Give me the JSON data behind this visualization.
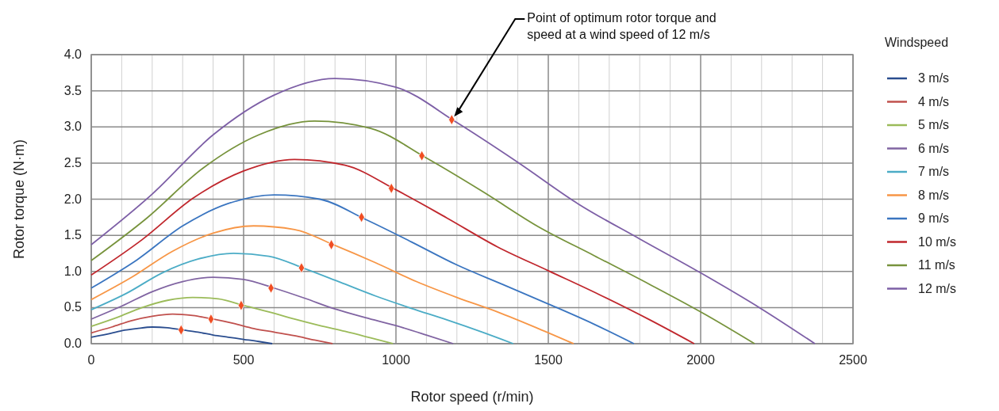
{
  "chart_data": {
    "type": "line",
    "xlabel": "Rotor speed (r/min)",
    "ylabel": "Rotor torque (N·m)",
    "legend_title": "Windspeed",
    "legend": "right",
    "grid": true,
    "marker": "none",
    "line_style": "solid",
    "xlim": [
      0,
      2500
    ],
    "ylim": [
      0,
      4
    ],
    "xticks": [
      0,
      {
        "value": 100,
        "label": null
      },
      {
        "value": 200,
        "label": null
      },
      {
        "value": 300,
        "label": null
      },
      {
        "value": 400,
        "label": null
      },
      500,
      {
        "value": 600,
        "label": null
      },
      {
        "value": 700,
        "label": null
      },
      {
        "value": 800,
        "label": null
      },
      {
        "value": 900,
        "label": null
      },
      1000,
      {
        "value": 1100,
        "label": null
      },
      {
        "value": 1200,
        "label": null
      },
      {
        "value": 1300,
        "label": null
      },
      {
        "value": 1400,
        "label": null
      },
      1500,
      {
        "value": 1600,
        "label": null
      },
      {
        "value": 1700,
        "label": null
      },
      {
        "value": 1800,
        "label": null
      },
      {
        "value": 1900,
        "label": null
      },
      2000,
      {
        "value": 2100,
        "label": null
      },
      {
        "value": 2200,
        "label": null
      },
      {
        "value": 2300,
        "label": null
      },
      {
        "value": 2400,
        "label": null
      },
      2500
    ],
    "yticks": [
      {
        "value": 0,
        "label": "0.0"
      },
      0.5,
      {
        "value": 1,
        "label": "1.0"
      },
      1.5,
      {
        "value": 2,
        "label": "2.0"
      },
      2.5,
      {
        "value": 3,
        "label": "3.0"
      },
      3.5,
      {
        "value": 4,
        "label": "4.0"
      }
    ],
    "annotations": [
      "Point of optimum rotor torque and\nspeed at a wind speed of 12 m/s"
    ],
    "series": [
      {
        "name": "3 m/s",
        "color": "#2a4d8f",
        "x": [
          0,
          50,
          100,
          150,
          200,
          250,
          300,
          350,
          400,
          450,
          500,
          550,
          594
        ],
        "values": [
          0.09,
          0.13,
          0.18,
          0.21,
          0.23,
          0.22,
          0.19,
          0.16,
          0.12,
          0.09,
          0.06,
          0.03,
          0
        ]
      },
      {
        "name": "4 m/s",
        "color": "#c0504d",
        "x": [
          0,
          67,
          133,
          200,
          267,
          333,
          400,
          467,
          533,
          600,
          667,
          733,
          792
        ],
        "values": [
          0.15,
          0.23,
          0.32,
          0.38,
          0.41,
          0.39,
          0.34,
          0.28,
          0.21,
          0.16,
          0.11,
          0.05,
          0
        ]
      },
      {
        "name": "5 m/s",
        "color": "#9bbb59",
        "x": [
          0,
          83,
          167,
          250,
          333,
          417,
          500,
          583,
          667,
          750,
          833,
          917,
          990
        ],
        "values": [
          0.24,
          0.36,
          0.5,
          0.6,
          0.64,
          0.62,
          0.53,
          0.44,
          0.34,
          0.25,
          0.17,
          0.08,
          0
        ]
      },
      {
        "name": "6 m/s",
        "color": "#8064a2",
        "x": [
          0,
          100,
          200,
          300,
          400,
          500,
          600,
          700,
          800,
          900,
          1000,
          1100,
          1188
        ],
        "values": [
          0.34,
          0.52,
          0.72,
          0.86,
          0.92,
          0.89,
          0.77,
          0.63,
          0.48,
          0.36,
          0.25,
          0.12,
          0
        ]
      },
      {
        "name": "7 m/s",
        "color": "#4bacc6",
        "x": [
          0,
          117,
          233,
          350,
          467,
          583,
          700,
          817,
          933,
          1050,
          1167,
          1283,
          1385
        ],
        "values": [
          0.47,
          0.7,
          0.98,
          1.17,
          1.25,
          1.21,
          1.04,
          0.85,
          0.66,
          0.49,
          0.33,
          0.16,
          0
        ]
      },
      {
        "name": "8 m/s",
        "color": "#f79646",
        "x": [
          0,
          133,
          267,
          400,
          533,
          667,
          800,
          933,
          1067,
          1200,
          1333,
          1467,
          1583
        ],
        "values": [
          0.61,
          0.92,
          1.28,
          1.53,
          1.63,
          1.58,
          1.36,
          1.12,
          0.86,
          0.64,
          0.44,
          0.21,
          0
        ]
      },
      {
        "name": "9 m/s",
        "color": "#3a75c0",
        "x": [
          0,
          150,
          300,
          450,
          600,
          750,
          900,
          1050,
          1200,
          1350,
          1500,
          1650,
          1781
        ],
        "values": [
          0.77,
          1.16,
          1.63,
          1.94,
          2.06,
          2,
          1.72,
          1.41,
          1.09,
          0.82,
          0.55,
          0.27,
          0
        ]
      },
      {
        "name": "10 m/s",
        "color": "#c0272d",
        "x": [
          0,
          167,
          333,
          500,
          667,
          833,
          1000,
          1167,
          1333,
          1500,
          1667,
          1833,
          1979
        ],
        "values": [
          0.95,
          1.44,
          2.01,
          2.39,
          2.55,
          2.47,
          2.13,
          1.74,
          1.34,
          1.01,
          0.68,
          0.33,
          0
        ]
      },
      {
        "name": "11 m/s",
        "color": "#77933c",
        "x": [
          0,
          183,
          367,
          550,
          733,
          917,
          1100,
          1283,
          1467,
          1650,
          1833,
          2017,
          2177
        ],
        "values": [
          1.15,
          1.74,
          2.43,
          2.89,
          3.08,
          2.98,
          2.57,
          2.11,
          1.62,
          1.22,
          0.82,
          0.4,
          0
        ]
      },
      {
        "name": "12 m/s",
        "color": "#7d5fa6",
        "x": [
          0,
          200,
          400,
          600,
          800,
          1000,
          1200,
          1400,
          1600,
          1800,
          2000,
          2200,
          2375
        ],
        "values": [
          1.37,
          2.07,
          2.89,
          3.44,
          3.67,
          3.55,
          3.06,
          2.51,
          1.93,
          1.45,
          0.98,
          0.48,
          0
        ]
      },
      {
        "type": "scatter",
        "marker": "diamond",
        "color": "#f04e23",
        "x": [
          295,
          393,
          492,
          590,
          690,
          788,
          887,
          985,
          1085,
          1183
        ],
        "values": [
          0.19,
          0.34,
          0.53,
          0.77,
          1.05,
          1.37,
          1.75,
          2.15,
          2.6,
          3.1
        ]
      }
    ]
  }
}
